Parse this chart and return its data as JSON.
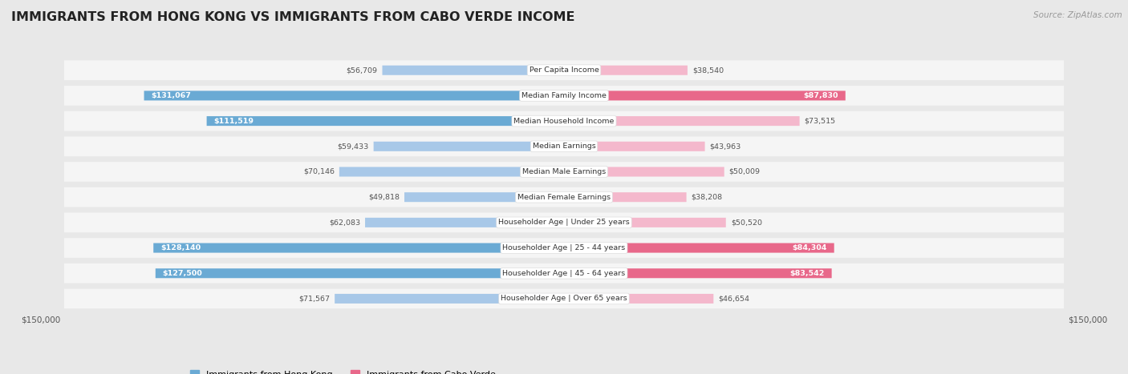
{
  "title": "IMMIGRANTS FROM HONG KONG VS IMMIGRANTS FROM CABO VERDE INCOME",
  "source": "Source: ZipAtlas.com",
  "categories": [
    "Per Capita Income",
    "Median Family Income",
    "Median Household Income",
    "Median Earnings",
    "Median Male Earnings",
    "Median Female Earnings",
    "Householder Age | Under 25 years",
    "Householder Age | 25 - 44 years",
    "Householder Age | 45 - 64 years",
    "Householder Age | Over 65 years"
  ],
  "hk_values": [
    56709,
    131067,
    111519,
    59433,
    70146,
    49818,
    62083,
    128140,
    127500,
    71567
  ],
  "cv_values": [
    38540,
    87830,
    73515,
    43963,
    50009,
    38208,
    50520,
    84304,
    83542,
    46654
  ],
  "hk_labels": [
    "$56,709",
    "$131,067",
    "$111,519",
    "$59,433",
    "$70,146",
    "$49,818",
    "$62,083",
    "$128,140",
    "$127,500",
    "$71,567"
  ],
  "cv_labels": [
    "$38,540",
    "$87,830",
    "$73,515",
    "$43,963",
    "$50,009",
    "$38,208",
    "$50,520",
    "$84,304",
    "$83,542",
    "$46,654"
  ],
  "hk_color_light": "#A8C8E8",
  "hk_color_dark": "#6AAAD4",
  "cv_color_light": "#F4B8CC",
  "cv_color_dark": "#E8688A",
  "xlim": 150000,
  "background_color": "#e8e8e8",
  "row_bg": "#f5f5f5",
  "legend_hk": "Immigrants from Hong Kong",
  "legend_cv": "Immigrants from Cabo Verde",
  "hk_threshold": 100000,
  "cv_threshold": 80000
}
